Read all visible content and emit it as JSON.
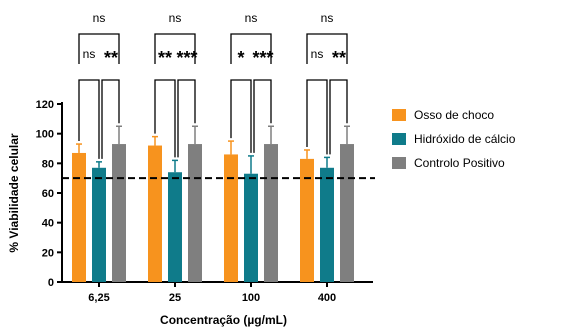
{
  "chart_data": {
    "type": "bar",
    "title": "",
    "xlabel": "Concentração (µg/mL)",
    "ylabel": "% Viabilidade celular",
    "ylim": [
      0,
      120
    ],
    "yticks": [
      0,
      20,
      40,
      60,
      80,
      100,
      120
    ],
    "categories": [
      "6,25",
      "25",
      "100",
      "400"
    ],
    "series": [
      {
        "name": "Osso de choco",
        "color": "#f7931e",
        "values": [
          87,
          92,
          86,
          83
        ],
        "errors": [
          6,
          6,
          9,
          6
        ]
      },
      {
        "name": "Hidróxido de cálcio",
        "color": "#0f7b8a",
        "values": [
          77,
          74,
          73,
          77
        ],
        "errors": [
          4,
          8,
          12,
          7
        ]
      },
      {
        "name": "Controlo Positivo",
        "color": "#7f7f7f",
        "values": [
          93,
          93,
          93,
          93
        ],
        "errors": [
          12,
          12,
          12,
          12
        ]
      }
    ],
    "reference_line": {
      "value": 70,
      "style": "dashed",
      "color": "#000000"
    },
    "legend_position": "right",
    "significance": [
      {
        "category": "6,25",
        "top": "ns",
        "left": "ns",
        "right": "**"
      },
      {
        "category": "25",
        "top": "ns",
        "left": "**",
        "right": "***"
      },
      {
        "category": "100",
        "top": "ns",
        "left": "*",
        "right": "***"
      },
      {
        "category": "400",
        "top": "ns",
        "left": "ns",
        "right": "**"
      }
    ]
  }
}
